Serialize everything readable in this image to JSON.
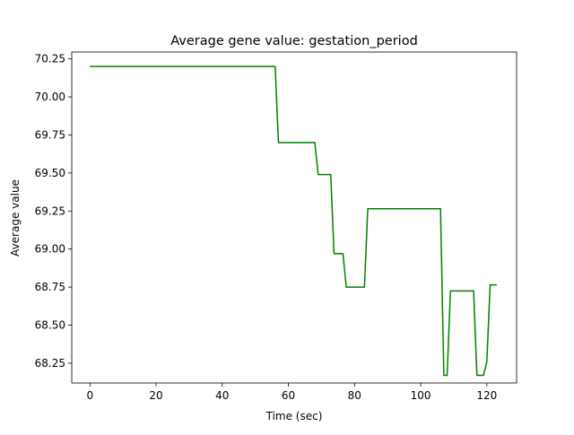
{
  "chart_data": {
    "type": "line",
    "title": "Average gene value: gestation_period",
    "xlabel": "Time (sec)",
    "ylabel": "Average value",
    "xlim": [
      -5.5,
      129
    ],
    "ylim": [
      68.12,
      70.295
    ],
    "xticks": [
      0,
      20,
      40,
      60,
      80,
      100,
      120
    ],
    "yticks": [
      68.25,
      68.5,
      68.75,
      69.0,
      69.25,
      69.5,
      69.75,
      70.0,
      70.25
    ],
    "ytick_labels": [
      "68.25",
      "68.50",
      "68.75",
      "69.00",
      "69.25",
      "69.50",
      "69.75",
      "70.00",
      "70.25"
    ],
    "grid": false,
    "series": [
      {
        "color": "#008000",
        "x": [
          0,
          56,
          57,
          68,
          69,
          72.8,
          73.8,
          76.5,
          77.5,
          83,
          84,
          106,
          107,
          108,
          109,
          116,
          117,
          119,
          120,
          121,
          123
        ],
        "y": [
          70.2,
          70.2,
          69.7,
          69.7,
          69.49,
          69.49,
          68.97,
          68.97,
          68.75,
          68.75,
          69.265,
          69.265,
          68.17,
          68.17,
          68.725,
          68.725,
          68.17,
          68.17,
          68.26,
          68.765,
          68.765
        ]
      }
    ]
  }
}
